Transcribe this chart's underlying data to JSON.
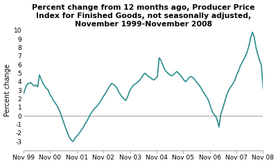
{
  "title": "Percent change from 12 months ago, Producer Price\nIndex for Finished Goods, not seasonally adjusted,\nNovember 1999-November 2008",
  "ylabel": "Percent change",
  "ylim": [
    -4,
    10
  ],
  "yticks": [
    -3,
    -2,
    -1,
    0,
    1,
    2,
    3,
    4,
    5,
    6,
    7,
    8,
    9,
    10
  ],
  "line_color": "#2a8b8b",
  "line_width": 1.2,
  "background_color": "#ffffff",
  "xtick_labels": [
    "Nov 99",
    "Nov 00",
    "Nov 01",
    "Nov 02",
    "Nov 03",
    "Nov 04",
    "Nov 05",
    "Nov 06",
    "Nov 07",
    "Nov 08"
  ],
  "values": [
    2.6,
    3.2,
    3.7,
    3.8,
    3.9,
    3.7,
    3.5,
    3.6,
    3.4,
    4.8,
    4.3,
    3.8,
    3.5,
    3.2,
    3.0,
    2.5,
    2.2,
    1.8,
    1.5,
    1.2,
    0.8,
    0.3,
    -0.3,
    -0.9,
    -1.5,
    -2.0,
    -2.5,
    -2.8,
    -3.0,
    -2.7,
    -2.4,
    -2.2,
    -1.9,
    -1.6,
    -1.3,
    -0.9,
    -0.6,
    -0.2,
    0.2,
    0.5,
    0.8,
    1.0,
    1.2,
    1.5,
    1.8,
    2.2,
    2.5,
    2.8,
    3.2,
    3.5,
    3.8,
    3.7,
    3.5,
    3.3,
    2.8,
    2.5,
    2.2,
    2.0,
    1.8,
    2.2,
    2.8,
    3.2,
    3.5,
    3.7,
    3.8,
    4.0,
    4.2,
    4.5,
    4.8,
    5.0,
    4.8,
    4.6,
    4.5,
    4.3,
    4.2,
    4.4,
    4.6,
    6.8,
    6.5,
    6.0,
    5.5,
    5.2,
    5.0,
    4.8,
    4.7,
    4.8,
    5.0,
    5.2,
    5.0,
    4.8,
    4.5,
    4.2,
    4.0,
    4.2,
    4.5,
    4.6,
    4.5,
    4.3,
    4.0,
    3.8,
    3.5,
    3.2,
    2.8,
    2.5,
    2.2,
    1.8,
    1.2,
    0.6,
    0.2,
    0.0,
    -0.5,
    -1.3,
    0.2,
    0.8,
    1.5,
    2.2,
    2.8,
    3.2,
    3.5,
    3.8,
    4.2,
    4.8,
    5.2,
    5.8,
    6.2,
    6.6,
    7.0,
    7.5,
    8.2,
    9.2,
    9.8,
    9.2,
    8.0,
    7.2,
    6.5,
    6.0,
    3.2
  ]
}
